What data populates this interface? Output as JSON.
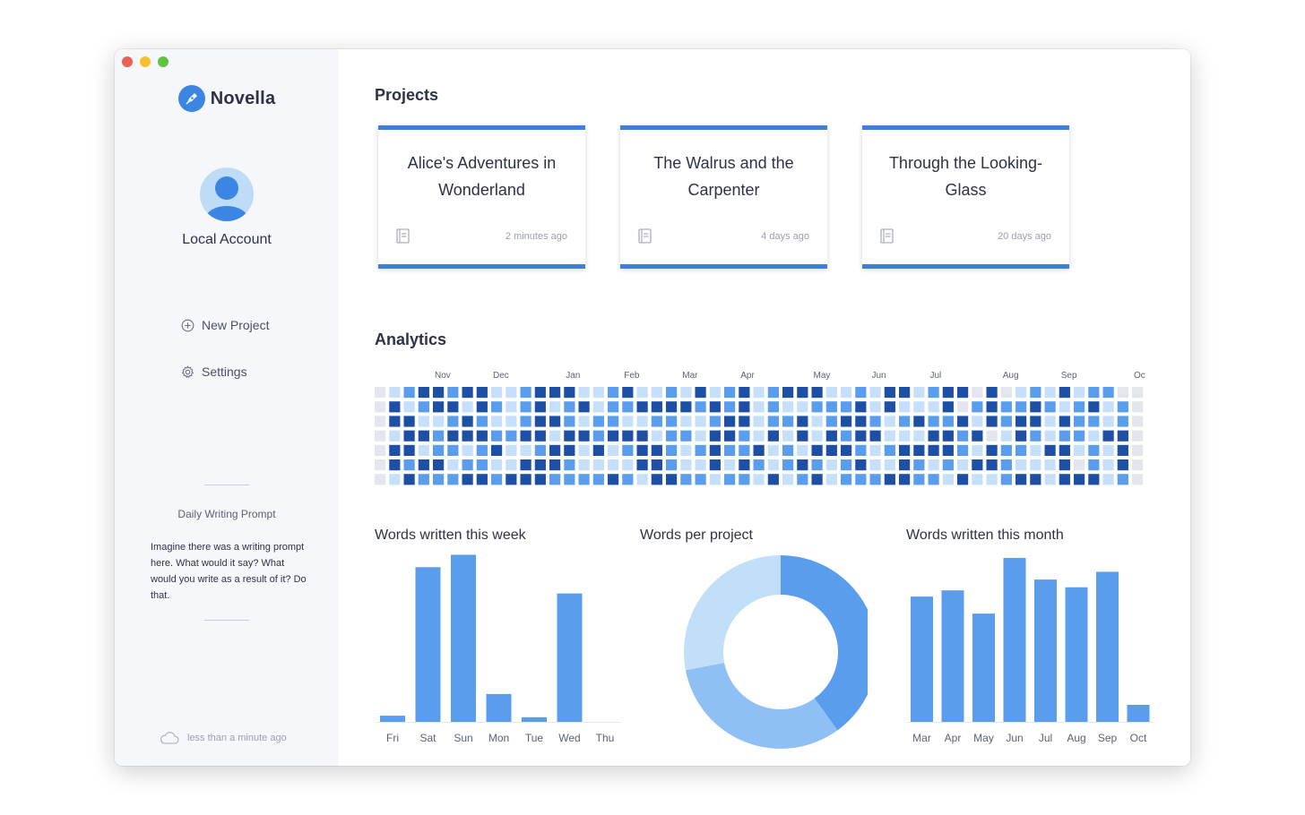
{
  "app": {
    "name": "Novella"
  },
  "sidebar": {
    "account_name": "Local Account",
    "nav": [
      {
        "label": "New Project",
        "icon": "plus-circle-icon"
      },
      {
        "label": "Settings",
        "icon": "gear-icon"
      }
    ],
    "prompt_title": "Daily Writing Prompt",
    "prompt_text": "Imagine there was a writing prompt here. What would it say? What would you write as a result of it? Do that.",
    "sync_status": "less than a minute ago"
  },
  "main": {
    "projects_title": "Projects",
    "projects": [
      {
        "title": "Alice's Adventures in Wonderland",
        "updated": "2 minutes ago"
      },
      {
        "title": "The Walrus and the Carpenter",
        "updated": "4 days ago"
      },
      {
        "title": "Through the Looking-Glass",
        "updated": "20 days ago"
      }
    ],
    "analytics_title": "Analytics"
  },
  "colors": {
    "accent": "#3f7fd6",
    "bar": "#5b9ded",
    "donut_1": "#5b9ded",
    "donut_2": "#8fc0f5",
    "donut_3": "#c2dffa",
    "heat_0": "#e3e6ec",
    "heat_1": "#c6e0fb",
    "heat_2": "#5b9ded",
    "heat_3": "#1d4fa5"
  },
  "heatmap": {
    "months": [
      "Nov",
      "Dec",
      "Jan",
      "Feb",
      "Mar",
      "Apr",
      "May",
      "Jun",
      "Jul",
      "Aug",
      "Sep",
      "Oct"
    ],
    "month_week_index": [
      4,
      8,
      13,
      17,
      21,
      25,
      30,
      34,
      38,
      43,
      47,
      52
    ],
    "weeks": 53,
    "levels": [
      "0123323311233311231121312312333112133123303012131220",
      "0312331321231231223333232312112223131113023223212312",
      "0331123211233212211221123312231233212322313233132212",
      "0133233322331332333122133213131323311133230132122133",
      "0331221231123313123321232231213332123333213221331213",
      "0323312211333211113321131321232123113212133211130213",
      "0132223323332222321332212213123122233221311233133312"
    ]
  },
  "chart_data": [
    {
      "type": "bar",
      "title": "Words written this week",
      "categories": [
        "Fri",
        "Sat",
        "Sun",
        "Mon",
        "Tue",
        "Wed",
        "Thu"
      ],
      "values": [
        4,
        100,
        108,
        18,
        3,
        83,
        0
      ],
      "ylim": [
        0,
        110
      ]
    },
    {
      "type": "pie",
      "title": "Words per project",
      "labels": [
        "",
        "",
        ""
      ],
      "values": [
        40,
        32,
        28
      ],
      "donut": true
    },
    {
      "type": "bar",
      "title": "Words written this month",
      "categories": [
        "Mar",
        "Apr",
        "May",
        "Jun",
        "Jul",
        "Aug",
        "Sep",
        "Oct"
      ],
      "values": [
        81,
        85,
        70,
        106,
        92,
        87,
        97,
        11
      ],
      "ylim": [
        0,
        110
      ]
    }
  ]
}
